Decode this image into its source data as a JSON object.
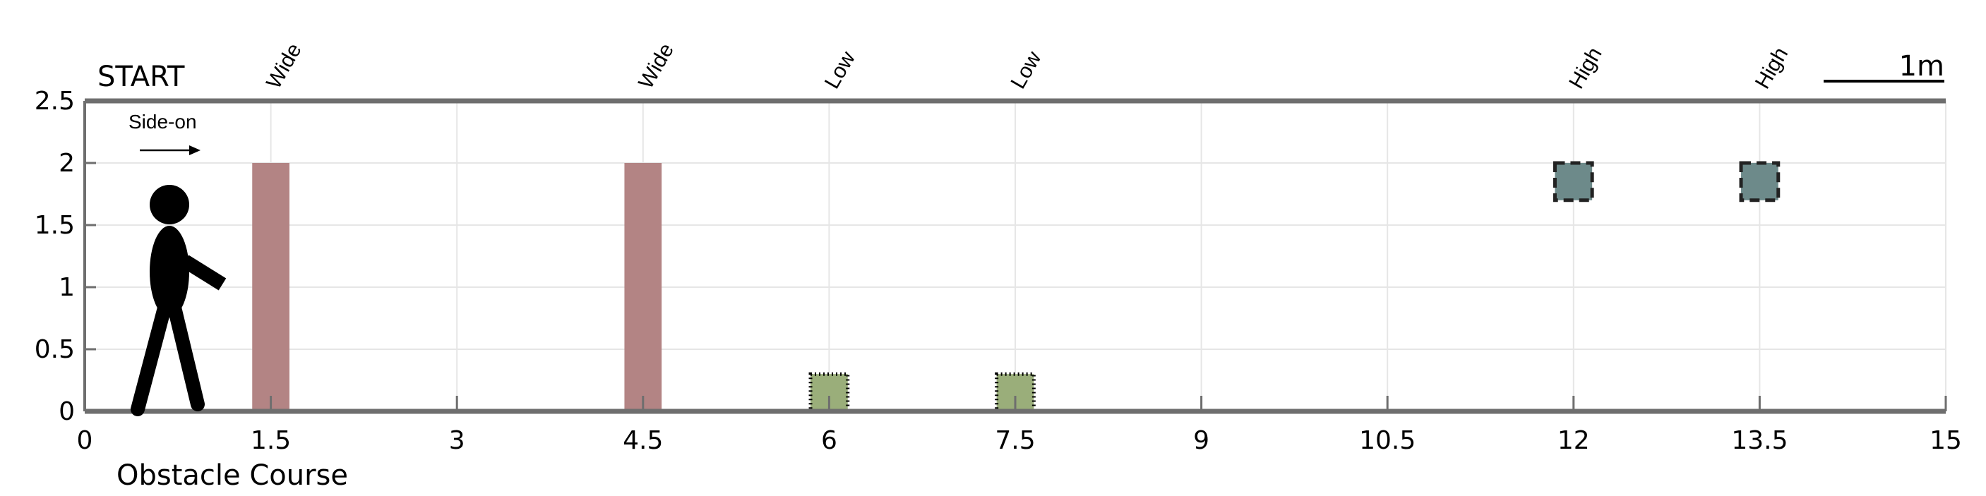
{
  "chart_data": {
    "type": "bar",
    "title": "",
    "xlabel": "Obstacle Course",
    "ylabel": "",
    "xlim": [
      0,
      15
    ],
    "ylim": [
      0,
      2.5
    ],
    "xticks": [
      0,
      1.5,
      3,
      4.5,
      6,
      7.5,
      9,
      10.5,
      12,
      13.5,
      15
    ],
    "xtick_labels": [
      "0",
      "1.5",
      "3",
      "4.5",
      "6",
      "7.5",
      "9",
      "10.5",
      "12",
      "13.5",
      "15"
    ],
    "yticks": [
      0,
      0.5,
      1,
      1.5,
      2,
      2.5
    ],
    "ytick_labels": [
      "0",
      "0.5",
      "1",
      "1.5",
      "2",
      "2.5"
    ],
    "grid": true,
    "start_label": "START",
    "direction_label": "Side-on",
    "scale_bar_label": "1m",
    "scale_bar_length": 1,
    "obstacles": [
      {
        "label": "Wide",
        "x": 1.5,
        "y_bottom": 0,
        "y_top": 2,
        "width": 0.3,
        "color": "#b38484",
        "border": "none"
      },
      {
        "label": "Wide",
        "x": 4.5,
        "y_bottom": 0,
        "y_top": 2,
        "width": 0.3,
        "color": "#b38484",
        "border": "none"
      },
      {
        "label": "Low",
        "x": 6,
        "y_bottom": 0,
        "y_top": 0.3,
        "width": 0.3,
        "color": "#9aae7a",
        "border": "dotted"
      },
      {
        "label": "Low",
        "x": 7.5,
        "y_bottom": 0,
        "y_top": 0.3,
        "width": 0.3,
        "color": "#9aae7a",
        "border": "dotted"
      },
      {
        "label": "High",
        "x": 12,
        "y_bottom": 1.7,
        "y_top": 2,
        "width": 0.3,
        "color": "#6d8a8a",
        "border": "dashed"
      },
      {
        "label": "High",
        "x": 13.5,
        "y_bottom": 1.7,
        "y_top": 2,
        "width": 0.3,
        "color": "#6d8a8a",
        "border": "dashed"
      }
    ]
  },
  "colors": {
    "axis": "#6e6e6e",
    "grid": "#e6e6e6",
    "figure": "#000000"
  }
}
